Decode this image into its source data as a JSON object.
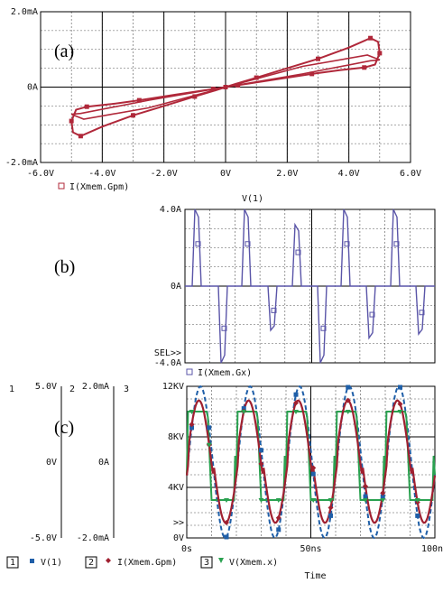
{
  "chart_data": [
    {
      "type": "line",
      "panel_label": "(a)",
      "xlim": [
        -6,
        6
      ],
      "ylim": [
        -2,
        2
      ],
      "x_ticks": [
        "-6.0V",
        "-4.0V",
        "-2.0V",
        "0V",
        "2.0V",
        "4.0V",
        "6.0V"
      ],
      "y_ticks": [
        "2.0mA",
        "0A",
        "-2.0mA"
      ],
      "legend": [
        {
          "marker": "square",
          "color": "#b0283a",
          "label": "I(Xmem.Gpm)"
        }
      ],
      "grid": true,
      "loop_points": [
        [
          0,
          0
        ],
        [
          0.4,
          0.05
        ],
        [
          1.6,
          0.2
        ],
        [
          2.8,
          0.35
        ],
        [
          3.7,
          0.45
        ],
        [
          4.5,
          0.52
        ],
        [
          4.85,
          0.6
        ],
        [
          5.0,
          0.9
        ],
        [
          4.95,
          1.2
        ],
        [
          4.7,
          1.3
        ],
        [
          4.0,
          1.05
        ],
        [
          3.0,
          0.75
        ],
        [
          2.0,
          0.5
        ],
        [
          1.0,
          0.25
        ],
        [
          0.3,
          0.08
        ],
        [
          0,
          0
        ]
      ],
      "inner_points": [
        [
          0,
          0
        ],
        [
          4.7,
          0.7
        ],
        [
          5.0,
          0.7
        ],
        [
          4.6,
          0.85
        ],
        [
          0,
          0
        ]
      ],
      "x_unit_label": "V"
    },
    {
      "type": "line",
      "panel_label": "(b)",
      "title": "V(1)",
      "ylim": [
        -4,
        4
      ],
      "y_ticks": [
        "4.0A",
        "0A",
        "-4.0A"
      ],
      "sel_label": "SEL>>",
      "legend": [
        {
          "marker": "square",
          "color": "#5a55a8",
          "label": "I(Xmem.Gx)"
        }
      ],
      "grid": true,
      "color": "#5a55a8"
    },
    {
      "type": "line",
      "panel_label": "(c)",
      "x_ticks": [
        "0s",
        "50ns",
        "100ns"
      ],
      "xlim": [
        0,
        100
      ],
      "xlabel": "Time",
      "axes": [
        {
          "id": "1",
          "ticks": [
            "5.0V",
            "0V",
            "-5.0V"
          ],
          "ylim": [
            -5,
            5
          ]
        },
        {
          "id": "2",
          "ticks": [
            "2.0mA",
            "0A",
            "-2.0mA"
          ],
          "ylim": [
            -2,
            2
          ]
        },
        {
          "id": "3",
          "ticks": [
            "12KV",
            "8KV",
            "4KV",
            "0V"
          ],
          "ylim": [
            0,
            12
          ]
        }
      ],
      "overflow_label": ">>",
      "period_ns": 20,
      "series": [
        {
          "axis": "1",
          "name": "V(1)",
          "marker": "square",
          "color": "#1f5fa8",
          "amplitude": 5
        },
        {
          "axis": "2",
          "name": "I(Xmem.Gpm)",
          "marker": "diamond",
          "color": "#b0283a"
        },
        {
          "axis": "3",
          "name": "V(Xmem.x)",
          "marker": "triangle",
          "color": "#2aa150",
          "low": 3,
          "high": 10
        }
      ],
      "grid": true
    }
  ]
}
